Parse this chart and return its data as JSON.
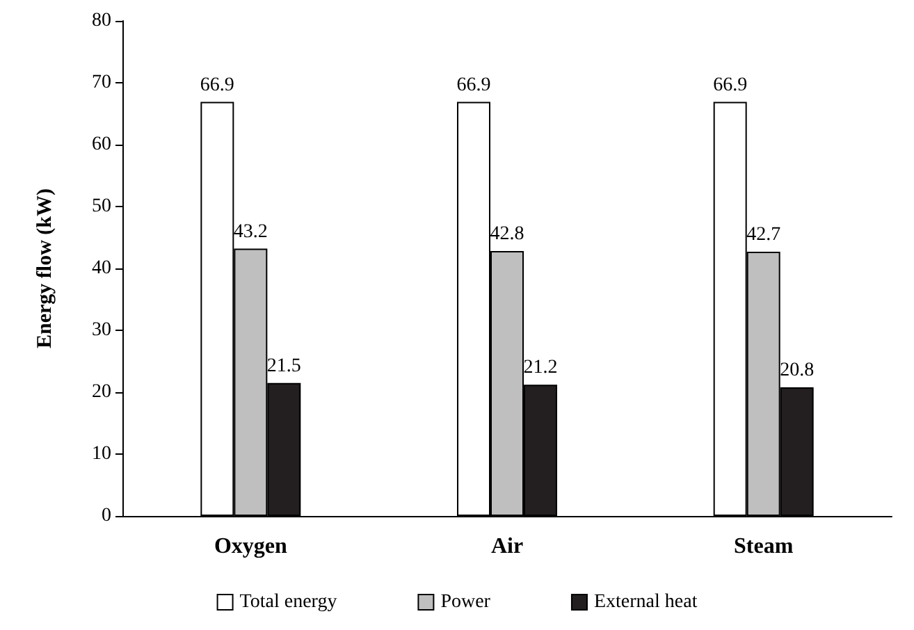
{
  "chart_data": {
    "type": "bar",
    "ylabel": "Energy flow (kW)",
    "categories": [
      "Oxygen",
      "Air",
      "Steam"
    ],
    "series": [
      {
        "name": "Total energy",
        "color": "#ffffff",
        "values": [
          66.9,
          66.9,
          66.9
        ]
      },
      {
        "name": "Power",
        "color": "#bfbfbf",
        "values": [
          43.2,
          42.8,
          42.7
        ]
      },
      {
        "name": "External heat",
        "color": "#231f20",
        "values": [
          21.5,
          21.2,
          20.8
        ]
      }
    ],
    "ylim": [
      0,
      80
    ],
    "yticks": [
      0,
      10,
      20,
      30,
      40,
      50,
      60,
      70,
      80
    ],
    "grid": false,
    "legend": "bottom",
    "data_labels": true
  }
}
